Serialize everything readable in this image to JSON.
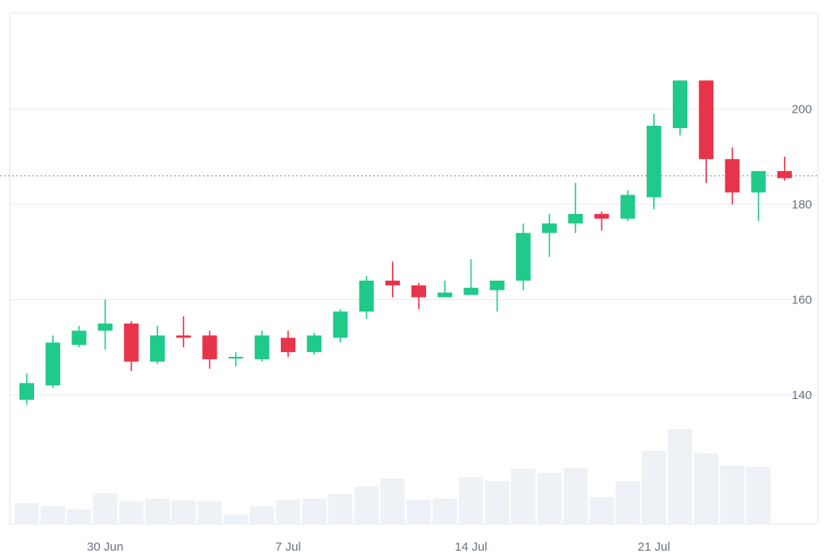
{
  "chart_data": {
    "type": "candlestick",
    "title": "",
    "xlabel": "",
    "ylabel": "",
    "ylim": [
      120,
      220
    ],
    "y_ticks": [
      140,
      160,
      180,
      200
    ],
    "y_axis_position": "right",
    "grid": true,
    "reference_line": 186,
    "x_tick_labels": [
      {
        "label": "30 Jun",
        "date": "2025-06-30"
      },
      {
        "label": "7 Jul",
        "date": "2025-07-07"
      },
      {
        "label": "14 Jul",
        "date": "2025-07-14"
      },
      {
        "label": "21 Jul",
        "date": "2025-07-21"
      }
    ],
    "colors": {
      "up": "#1fca8a",
      "down": "#e8344a",
      "volume": "#eef1f6",
      "grid": "#e7eaef",
      "reference": "#9aa0a6"
    },
    "candles": [
      {
        "date": "2025-06-27",
        "open": 139.0,
        "high": 144.5,
        "low": 138.0,
        "close": 142.5
      },
      {
        "date": "2025-06-28",
        "open": 142.0,
        "high": 152.5,
        "low": 141.5,
        "close": 151.0
      },
      {
        "date": "2025-06-29",
        "open": 150.5,
        "high": 154.5,
        "low": 150.0,
        "close": 153.5
      },
      {
        "date": "2025-06-30",
        "open": 153.5,
        "high": 160.0,
        "low": 149.5,
        "close": 155.0
      },
      {
        "date": "2025-07-01",
        "open": 155.0,
        "high": 155.5,
        "low": 145.0,
        "close": 147.0
      },
      {
        "date": "2025-07-02",
        "open": 147.0,
        "high": 154.5,
        "low": 146.5,
        "close": 152.5
      },
      {
        "date": "2025-07-03",
        "open": 152.5,
        "high": 156.5,
        "low": 150.0,
        "close": 152.0
      },
      {
        "date": "2025-07-04",
        "open": 152.5,
        "high": 153.5,
        "low": 145.5,
        "close": 147.5
      },
      {
        "date": "2025-07-05",
        "open": 148.0,
        "high": 149.0,
        "low": 146.0,
        "close": 148.0
      },
      {
        "date": "2025-07-06",
        "open": 147.5,
        "high": 153.5,
        "low": 147.0,
        "close": 152.5
      },
      {
        "date": "2025-07-07",
        "open": 152.0,
        "high": 153.5,
        "low": 148.0,
        "close": 149.0
      },
      {
        "date": "2025-07-08",
        "open": 149.0,
        "high": 153.0,
        "low": 148.5,
        "close": 152.5
      },
      {
        "date": "2025-07-09",
        "open": 152.0,
        "high": 158.0,
        "low": 151.0,
        "close": 157.5
      },
      {
        "date": "2025-07-10",
        "open": 157.5,
        "high": 165.0,
        "low": 156.0,
        "close": 164.0
      },
      {
        "date": "2025-07-11",
        "open": 164.0,
        "high": 168.0,
        "low": 160.5,
        "close": 163.0
      },
      {
        "date": "2025-07-12",
        "open": 163.0,
        "high": 163.5,
        "low": 158.0,
        "close": 160.5
      },
      {
        "date": "2025-07-13",
        "open": 160.5,
        "high": 164.0,
        "low": 160.5,
        "close": 161.5
      },
      {
        "date": "2025-07-14",
        "open": 161.0,
        "high": 168.5,
        "low": 161.0,
        "close": 162.5
      },
      {
        "date": "2025-07-15",
        "open": 162.0,
        "high": 164.0,
        "low": 157.5,
        "close": 164.0
      },
      {
        "date": "2025-07-16",
        "open": 164.0,
        "high": 176.0,
        "low": 162.0,
        "close": 174.0
      },
      {
        "date": "2025-07-17",
        "open": 174.0,
        "high": 178.0,
        "low": 169.0,
        "close": 176.0
      },
      {
        "date": "2025-07-18",
        "open": 176.0,
        "high": 184.5,
        "low": 174.0,
        "close": 178.0
      },
      {
        "date": "2025-07-19",
        "open": 178.0,
        "high": 178.5,
        "low": 174.5,
        "close": 177.0
      },
      {
        "date": "2025-07-20",
        "open": 177.0,
        "high": 183.0,
        "low": 176.5,
        "close": 182.0
      },
      {
        "date": "2025-07-21",
        "open": 181.5,
        "high": 199.0,
        "low": 179.0,
        "close": 196.5
      },
      {
        "date": "2025-07-22",
        "open": 196.0,
        "high": 206.0,
        "low": 194.5,
        "close": 206.0
      },
      {
        "date": "2025-07-23",
        "open": 206.0,
        "high": 206.0,
        "low": 184.5,
        "close": 189.5
      },
      {
        "date": "2025-07-24",
        "open": 189.5,
        "high": 192.0,
        "low": 180.0,
        "close": 182.5
      },
      {
        "date": "2025-07-25",
        "open": 182.5,
        "high": 187.0,
        "low": 176.5,
        "close": 187.0
      },
      {
        "date": "2025-07-26",
        "open": 187.0,
        "high": 190.0,
        "low": 185.0,
        "close": 185.5
      }
    ],
    "volume": [
      26,
      22,
      18,
      38,
      28,
      31,
      29,
      28,
      12,
      22,
      30,
      31,
      37,
      46,
      56,
      30,
      31,
      58,
      53,
      68,
      63,
      69,
      33,
      53,
      90,
      117,
      87,
      72,
      70,
      0
    ]
  }
}
